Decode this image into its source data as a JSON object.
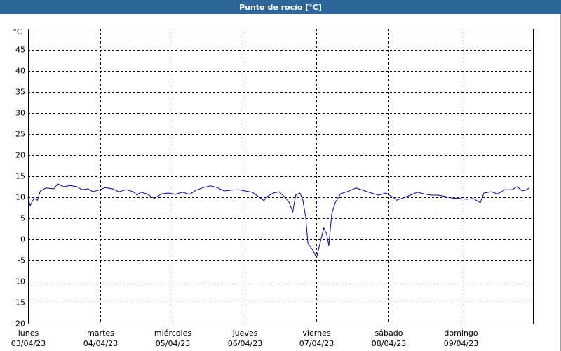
{
  "chart_data": {
    "type": "line",
    "title": "Punto de rocío [°C]",
    "y_label": "°C",
    "x": [
      0,
      0.03,
      0.08,
      0.13,
      0.17,
      0.25,
      0.36,
      0.41,
      0.49,
      0.58,
      0.68,
      0.75,
      0.83,
      0.9,
      1.0,
      1.07,
      1.17,
      1.26,
      1.36,
      1.46,
      1.51,
      1.56,
      1.65,
      1.75,
      1.85,
      1.94,
      2.04,
      2.14,
      2.24,
      2.33,
      2.43,
      2.53,
      2.62,
      2.72,
      2.82,
      2.92,
      3.01,
      3.11,
      3.19,
      3.27,
      3.32,
      3.4,
      3.48,
      3.55,
      3.62,
      3.67,
      3.71,
      3.77,
      3.81,
      3.85,
      3.88,
      3.94,
      4.0,
      4.04,
      4.1,
      4.14,
      4.17,
      4.21,
      4.26,
      4.33,
      4.42,
      4.55,
      4.67,
      4.76,
      4.86,
      4.96,
      5.06,
      5.11,
      5.2,
      5.3,
      5.4,
      5.49,
      5.59,
      5.69,
      5.78,
      5.88,
      5.98,
      6.08,
      6.17,
      6.22,
      6.27,
      6.32,
      6.42,
      6.51,
      6.61,
      6.71,
      6.78,
      6.85,
      6.9,
      6.95
    ],
    "series": [
      {
        "name": "Punto de rocío",
        "color": "#0000c0",
        "values": [
          10,
          8,
          9.7,
          9.3,
          11.5,
          12.2,
          12,
          13.2,
          12.5,
          12.8,
          12.5,
          11.8,
          12,
          11.3,
          11.8,
          12.3,
          12,
          11.3,
          11.8,
          11.3,
          10.5,
          11.2,
          10.8,
          9.7,
          10.8,
          11,
          10.7,
          11.2,
          10.7,
          11.7,
          12.3,
          12.7,
          12.3,
          11.5,
          11.7,
          11.8,
          11.5,
          11.2,
          10.2,
          9.2,
          10.2,
          11,
          11.3,
          10.2,
          8.8,
          6.5,
          10.5,
          11,
          9.3,
          5.2,
          -1,
          -2.3,
          -4.3,
          -1.5,
          2.7,
          1.3,
          -1.5,
          6,
          8.8,
          10.8,
          11.3,
          12.2,
          11.5,
          11,
          10.5,
          11,
          10,
          9.3,
          9.8,
          10.5,
          11.2,
          10.8,
          10.5,
          10.5,
          10.2,
          9.8,
          9.7,
          9.5,
          9.7,
          9.2,
          8.7,
          11,
          11.3,
          10.8,
          11.8,
          11.8,
          12.5,
          11.5,
          11.7,
          12.2
        ]
      }
    ],
    "xlim": [
      0,
      7
    ],
    "xticks": [
      {
        "value": 0,
        "label": "03/04/23"
      },
      {
        "value": 1,
        "label": "04/04/23"
      },
      {
        "value": 2,
        "label": "05/04/23"
      },
      {
        "value": 3,
        "label": "06/04/23"
      },
      {
        "value": 4,
        "label": "07/04/23"
      },
      {
        "value": 5,
        "label": "08/04/23"
      },
      {
        "value": 6,
        "label": "09/04/23"
      }
    ],
    "xtick_days": [
      "lunes",
      "martes",
      "miércoles",
      "jueves",
      "viernes",
      "sábado",
      "domingo"
    ],
    "ylim": [
      -20,
      50
    ],
    "yticks": [
      -20,
      -15,
      -10,
      -5,
      0,
      5,
      10,
      15,
      20,
      25,
      30,
      35,
      40,
      45
    ],
    "grid": true
  }
}
